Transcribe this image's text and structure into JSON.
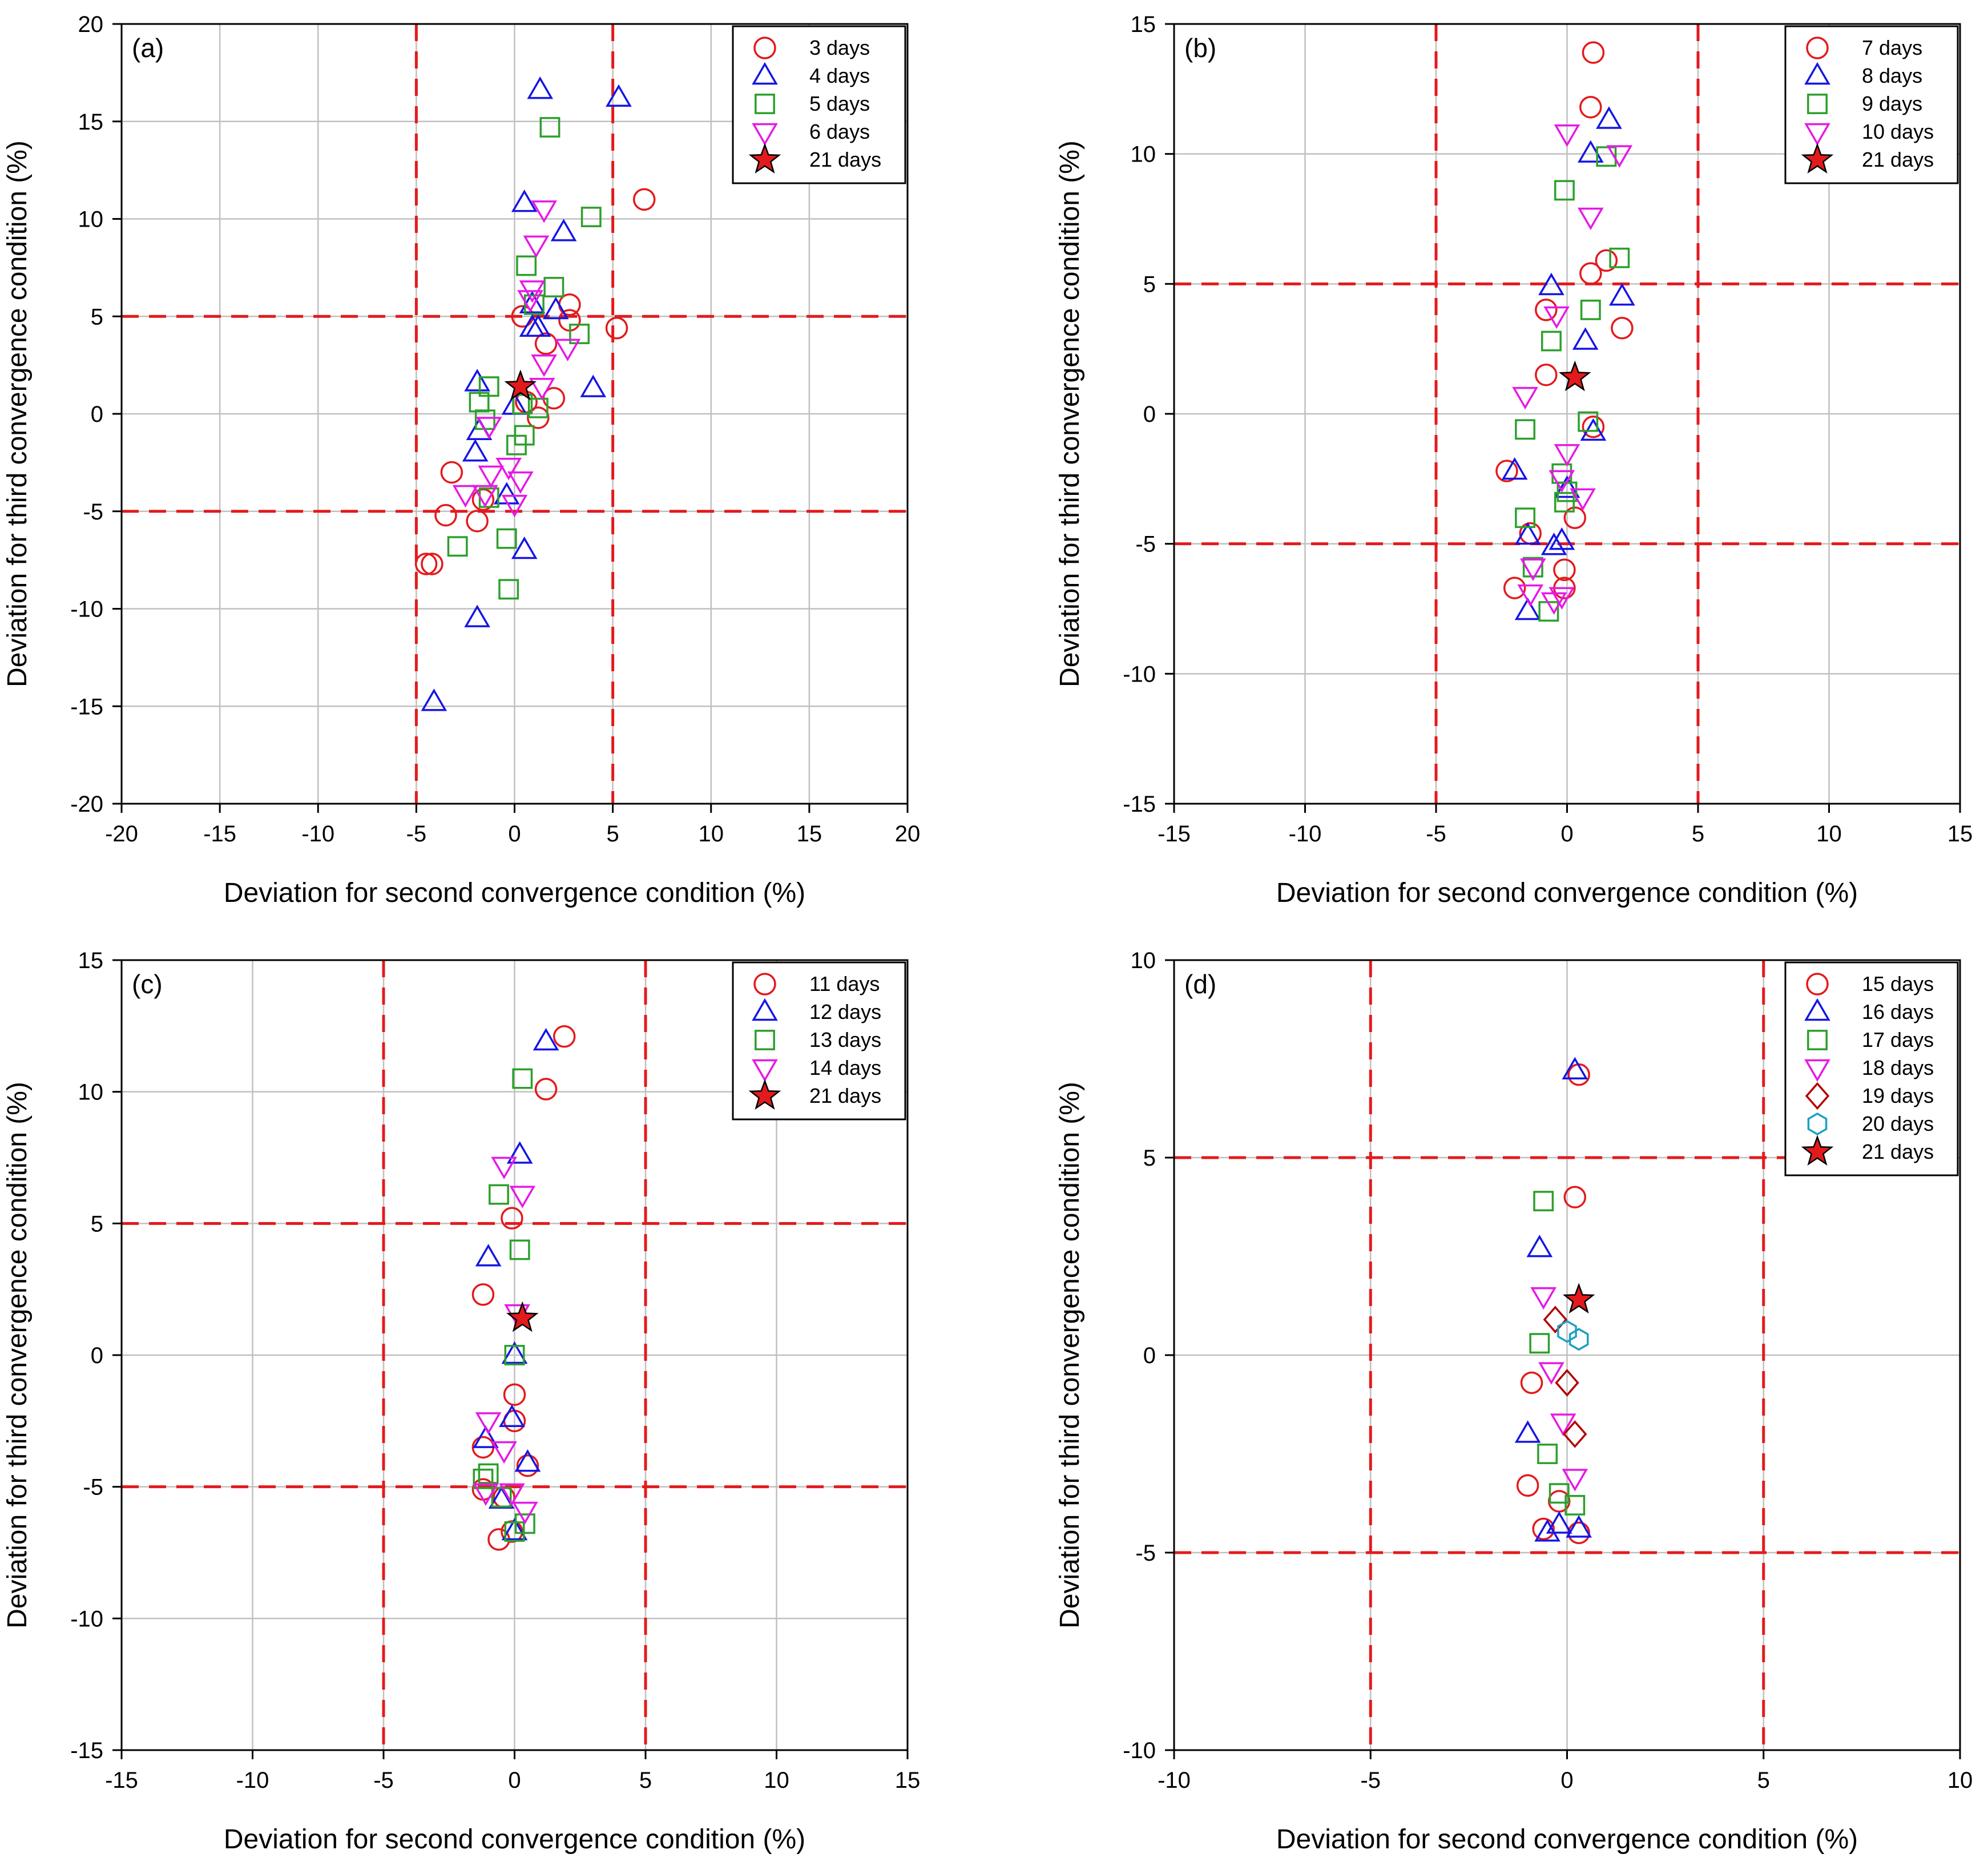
{
  "chart_data": [
    {
      "type": "scatter",
      "panel_label": "(a)",
      "xlabel": "Deviation for second convergence condition (%)",
      "ylabel": "Deviation for third convergence condition (%)",
      "xlim": [
        -20,
        20
      ],
      "ylim": [
        -20,
        20
      ],
      "xticks": [
        -20,
        -15,
        -10,
        -5,
        0,
        5,
        10,
        15,
        20
      ],
      "yticks": [
        -20,
        -15,
        -10,
        -5,
        0,
        5,
        10,
        15,
        20
      ],
      "reference_lines": {
        "x": [
          -5,
          5
        ],
        "y": [
          -5,
          5
        ]
      },
      "grid": true,
      "legend_position": "top-right",
      "series": [
        {
          "name": "3 days",
          "marker": "circle",
          "color": "#e31a1c",
          "points": [
            [
              6.6,
              11.0
            ],
            [
              5.2,
              4.4
            ],
            [
              2.8,
              5.6
            ],
            [
              2.8,
              4.8
            ],
            [
              1.6,
              3.6
            ],
            [
              2.0,
              0.8
            ],
            [
              1.2,
              -0.2
            ],
            [
              0.6,
              0.6
            ],
            [
              0.4,
              5.0
            ],
            [
              -1.6,
              -4.4
            ],
            [
              -1.9,
              -5.5
            ],
            [
              -3.2,
              -3.0
            ],
            [
              -3.5,
              -5.2
            ],
            [
              -4.2,
              -7.7
            ],
            [
              -4.5,
              -7.7
            ]
          ]
        },
        {
          "name": "4 days",
          "marker": "triangle-up",
          "color": "#1515e6",
          "points": [
            [
              1.3,
              16.6
            ],
            [
              5.3,
              16.2
            ],
            [
              0.5,
              10.8
            ],
            [
              2.5,
              9.3
            ],
            [
              2.1,
              5.3
            ],
            [
              0.9,
              5.6
            ],
            [
              1.2,
              4.4
            ],
            [
              0.9,
              4.4
            ],
            [
              4.0,
              1.3
            ],
            [
              -1.9,
              1.6
            ],
            [
              0.0,
              0.4
            ],
            [
              -1.8,
              -0.9
            ],
            [
              -2.0,
              -2.0
            ],
            [
              -0.4,
              -4.2
            ],
            [
              0.5,
              -7.0
            ],
            [
              -1.9,
              -10.5
            ],
            [
              -4.1,
              -14.8
            ]
          ]
        },
        {
          "name": "5 days",
          "marker": "square",
          "color": "#2ca02c",
          "points": [
            [
              1.8,
              14.7
            ],
            [
              3.9,
              10.1
            ],
            [
              0.6,
              7.6
            ],
            [
              2.0,
              6.5
            ],
            [
              1.0,
              5.6
            ],
            [
              3.3,
              4.1
            ],
            [
              0.4,
              0.5
            ],
            [
              1.2,
              0.3
            ],
            [
              -1.3,
              1.4
            ],
            [
              -1.8,
              0.6
            ],
            [
              -1.5,
              -0.3
            ],
            [
              0.5,
              -1.1
            ],
            [
              0.1,
              -1.6
            ],
            [
              -1.3,
              -4.3
            ],
            [
              -0.4,
              -6.4
            ],
            [
              -2.9,
              -6.8
            ],
            [
              -0.3,
              -9.0
            ]
          ]
        },
        {
          "name": "6 days",
          "marker": "triangle-down",
          "color": "#e619e6",
          "points": [
            [
              1.5,
              10.5
            ],
            [
              1.1,
              8.7
            ],
            [
              0.9,
              6.4
            ],
            [
              0.8,
              5.9
            ],
            [
              2.7,
              3.4
            ],
            [
              1.5,
              2.6
            ],
            [
              1.4,
              1.4
            ],
            [
              -1.3,
              -0.6
            ],
            [
              -1.2,
              -3.1
            ],
            [
              -0.3,
              -2.7
            ],
            [
              0.3,
              -3.4
            ],
            [
              -1.5,
              -4.1
            ],
            [
              -2.5,
              -4.1
            ],
            [
              0.0,
              -4.6
            ]
          ]
        },
        {
          "name": "21 days",
          "marker": "star",
          "color": "#e31a1c",
          "points": [
            [
              0.3,
              1.4
            ]
          ]
        }
      ]
    },
    {
      "type": "scatter",
      "panel_label": "(b)",
      "xlabel": "Deviation for second convergence condition (%)",
      "ylabel": "Deviation for third convergence condition (%)",
      "xlim": [
        -15,
        15
      ],
      "ylim": [
        -15,
        15
      ],
      "xticks": [
        -15,
        -10,
        -5,
        0,
        5,
        10,
        15
      ],
      "yticks": [
        -15,
        -10,
        -5,
        0,
        5,
        10,
        15
      ],
      "reference_lines": {
        "x": [
          -5,
          5
        ],
        "y": [
          -5,
          5
        ]
      },
      "grid": true,
      "legend_position": "top-right",
      "series": [
        {
          "name": "7 days",
          "marker": "circle",
          "color": "#e31a1c",
          "points": [
            [
              1.0,
              13.9
            ],
            [
              0.9,
              11.8
            ],
            [
              1.5,
              5.9
            ],
            [
              0.9,
              5.4
            ],
            [
              2.1,
              3.3
            ],
            [
              -0.8,
              4.0
            ],
            [
              -0.8,
              1.5
            ],
            [
              1.0,
              -0.5
            ],
            [
              -2.3,
              -2.2
            ],
            [
              0.3,
              -4.0
            ],
            [
              -1.4,
              -4.6
            ],
            [
              -0.1,
              -6.0
            ],
            [
              -0.1,
              -6.7
            ],
            [
              -2.0,
              -6.7
            ]
          ]
        },
        {
          "name": "8 days",
          "marker": "triangle-up",
          "color": "#1515e6",
          "points": [
            [
              1.6,
              11.3
            ],
            [
              0.9,
              10.0
            ],
            [
              2.1,
              4.5
            ],
            [
              -0.6,
              4.9
            ],
            [
              0.7,
              2.8
            ],
            [
              1.0,
              -0.7
            ],
            [
              -2.0,
              -2.2
            ],
            [
              0.0,
              -2.9
            ],
            [
              -0.2,
              -4.9
            ],
            [
              -0.5,
              -5.1
            ],
            [
              -1.5,
              -4.7
            ],
            [
              -1.5,
              -7.6
            ]
          ]
        },
        {
          "name": "9 days",
          "marker": "square",
          "color": "#2ca02c",
          "points": [
            [
              2.0,
              6.0
            ],
            [
              1.5,
              9.9
            ],
            [
              -0.1,
              8.6
            ],
            [
              0.9,
              4.0
            ],
            [
              -0.6,
              2.8
            ],
            [
              0.8,
              -0.3
            ],
            [
              -1.6,
              -0.6
            ],
            [
              -0.2,
              -2.3
            ],
            [
              0.0,
              -3.0
            ],
            [
              -0.1,
              -3.4
            ],
            [
              -1.6,
              -4.0
            ],
            [
              -1.3,
              -5.9
            ],
            [
              -0.7,
              -7.6
            ]
          ]
        },
        {
          "name": "10 days",
          "marker": "triangle-down",
          "color": "#e619e6",
          "points": [
            [
              0.0,
              10.8
            ],
            [
              2.0,
              10.0
            ],
            [
              0.9,
              7.6
            ],
            [
              -0.4,
              3.8
            ],
            [
              -1.6,
              0.7
            ],
            [
              0.0,
              -1.5
            ],
            [
              -0.2,
              -2.5
            ],
            [
              0.6,
              -3.2
            ],
            [
              -1.3,
              -5.9
            ],
            [
              -1.4,
              -6.9
            ],
            [
              -0.2,
              -7.0
            ],
            [
              -0.5,
              -7.2
            ]
          ]
        },
        {
          "name": "21 days",
          "marker": "star",
          "color": "#e31a1c",
          "points": [
            [
              0.3,
              1.4
            ]
          ]
        }
      ]
    },
    {
      "type": "scatter",
      "panel_label": "(c)",
      "xlabel": "Deviation for second convergence condition (%)",
      "ylabel": "Deviation for third convergence condition (%)",
      "xlim": [
        -15,
        15
      ],
      "ylim": [
        -15,
        15
      ],
      "xticks": [
        -15,
        -10,
        -5,
        0,
        5,
        10,
        15
      ],
      "yticks": [
        -15,
        -10,
        -5,
        0,
        5,
        10,
        15
      ],
      "reference_lines": {
        "x": [
          -5,
          5
        ],
        "y": [
          -5,
          5
        ]
      },
      "grid": true,
      "legend_position": "top-right",
      "series": [
        {
          "name": "11 days",
          "marker": "circle",
          "color": "#e31a1c",
          "points": [
            [
              1.9,
              12.1
            ],
            [
              1.2,
              10.1
            ],
            [
              -0.1,
              5.2
            ],
            [
              -1.2,
              2.3
            ],
            [
              0.0,
              -1.5
            ],
            [
              -1.2,
              -3.5
            ],
            [
              0.0,
              -2.5
            ],
            [
              0.5,
              -4.2
            ],
            [
              -1.2,
              -5.1
            ],
            [
              -0.4,
              -5.4
            ],
            [
              -0.1,
              -6.7
            ],
            [
              -0.6,
              -7.0
            ]
          ]
        },
        {
          "name": "12 days",
          "marker": "triangle-up",
          "color": "#1515e6",
          "points": [
            [
              1.2,
              11.9
            ],
            [
              0.2,
              7.6
            ],
            [
              -1.0,
              3.7
            ],
            [
              0.0,
              0.0
            ],
            [
              -0.1,
              -2.4
            ],
            [
              -1.1,
              -3.2
            ],
            [
              0.5,
              -4.1
            ],
            [
              -0.5,
              -5.5
            ],
            [
              0.0,
              -6.7
            ]
          ]
        },
        {
          "name": "13 days",
          "marker": "square",
          "color": "#2ca02c",
          "points": [
            [
              0.3,
              10.5
            ],
            [
              -0.6,
              6.1
            ],
            [
              0.2,
              4.0
            ],
            [
              0.0,
              0.0
            ],
            [
              -1.0,
              -4.5
            ],
            [
              -1.2,
              -4.7
            ],
            [
              -0.5,
              -5.4
            ],
            [
              0.4,
              -6.4
            ],
            [
              0.0,
              -6.7
            ]
          ]
        },
        {
          "name": "14 days",
          "marker": "triangle-down",
          "color": "#e619e6",
          "points": [
            [
              -0.4,
              7.2
            ],
            [
              0.3,
              6.1
            ],
            [
              0.1,
              1.6
            ],
            [
              -1.0,
              -2.5
            ],
            [
              -0.4,
              -3.6
            ],
            [
              -1.1,
              -5.2
            ],
            [
              -0.1,
              -5.2
            ],
            [
              0.4,
              -5.9
            ]
          ]
        },
        {
          "name": "21 days",
          "marker": "star",
          "color": "#e31a1c",
          "points": [
            [
              0.3,
              1.4
            ]
          ]
        }
      ]
    },
    {
      "type": "scatter",
      "panel_label": "(d)",
      "xlabel": "Deviation for second convergence condition (%)",
      "ylabel": "Deviation for third convergence condition (%)",
      "xlim": [
        -10,
        10
      ],
      "ylim": [
        -10,
        10
      ],
      "xticks": [
        -10,
        -5,
        0,
        5,
        10
      ],
      "yticks": [
        -10,
        -5,
        0,
        5,
        10
      ],
      "reference_lines": {
        "x": [
          -5,
          5
        ],
        "y": [
          -5,
          5
        ]
      },
      "grid": true,
      "legend_position": "top-right",
      "series": [
        {
          "name": "15 days",
          "marker": "circle",
          "color": "#e31a1c",
          "points": [
            [
              0.3,
              7.1
            ],
            [
              0.2,
              4.0
            ],
            [
              -0.9,
              -0.7
            ],
            [
              -1.0,
              -3.3
            ],
            [
              -0.2,
              -3.7
            ],
            [
              -0.6,
              -4.4
            ],
            [
              0.3,
              -4.5
            ]
          ]
        },
        {
          "name": "16 days",
          "marker": "triangle-up",
          "color": "#1515e6",
          "points": [
            [
              0.2,
              7.2
            ],
            [
              -0.7,
              2.7
            ],
            [
              -1.0,
              -2.0
            ],
            [
              -0.2,
              -4.3
            ],
            [
              -0.5,
              -4.5
            ],
            [
              0.3,
              -4.4
            ]
          ]
        },
        {
          "name": "17 days",
          "marker": "square",
          "color": "#2ca02c",
          "points": [
            [
              -0.6,
              3.9
            ],
            [
              -0.7,
              0.3
            ],
            [
              -0.5,
              -2.5
            ],
            [
              -0.2,
              -3.5
            ],
            [
              0.2,
              -3.8
            ]
          ]
        },
        {
          "name": "18 days",
          "marker": "triangle-down",
          "color": "#e619e6",
          "points": [
            [
              -0.6,
              1.5
            ],
            [
              -0.4,
              -0.4
            ],
            [
              -0.1,
              -1.7
            ],
            [
              0.2,
              -3.1
            ]
          ]
        },
        {
          "name": "19 days",
          "marker": "diamond",
          "color": "#b30000",
          "points": [
            [
              -0.3,
              0.9
            ],
            [
              0.0,
              -0.7
            ],
            [
              0.2,
              -2.0
            ]
          ]
        },
        {
          "name": "20 days",
          "marker": "hexagon",
          "color": "#1f9fc4",
          "points": [
            [
              0.0,
              0.6
            ],
            [
              0.3,
              0.4
            ]
          ]
        },
        {
          "name": "21 days",
          "marker": "star",
          "color": "#e31a1c",
          "points": [
            [
              0.3,
              1.4
            ]
          ]
        }
      ]
    }
  ]
}
